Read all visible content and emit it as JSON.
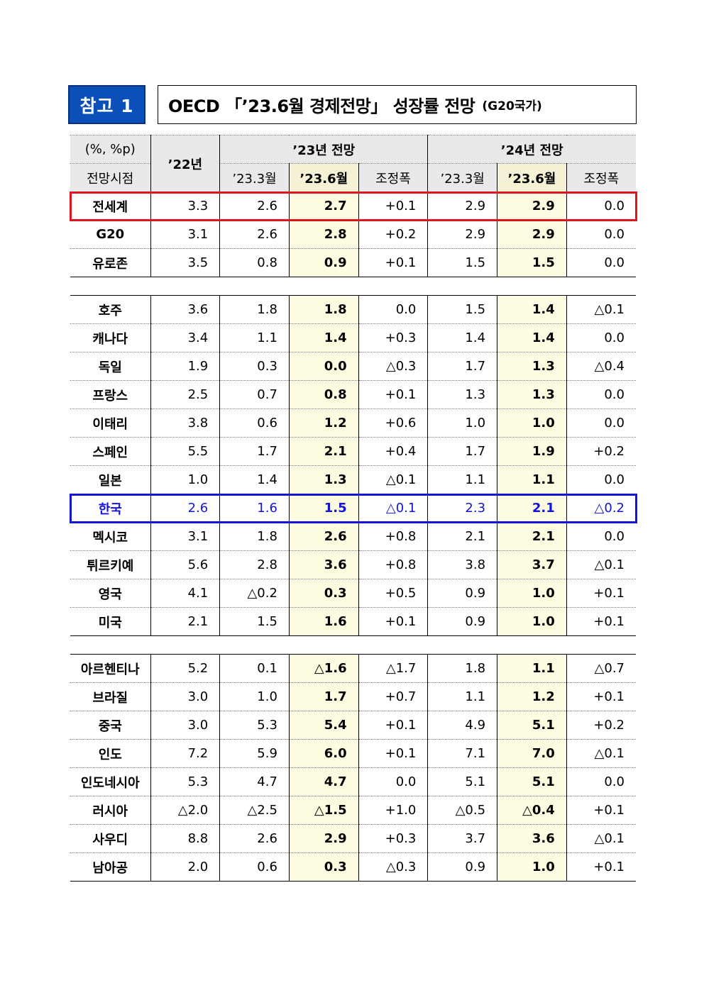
{
  "badge": "참고 1",
  "title": {
    "main": "OECD 「’23.6월 경제전망」 성장률 전망",
    "sub": "(G20국가)"
  },
  "header": {
    "unit": "(%, %p)",
    "basis": "전망시점",
    "y22": "’22년",
    "y23_group": "’23년 전망",
    "y24_group": "’24년 전망",
    "sub_march": "’23.3월",
    "sub_june": "’23.6월",
    "sub_adj": "조정폭"
  },
  "groups": [
    {
      "rows": [
        {
          "name": "전세계",
          "v22": "3.3",
          "m23": "2.6",
          "j23": "2.7",
          "a23": "+0.1",
          "m24": "2.9",
          "j24": "2.9",
          "a24": "0.0"
        },
        {
          "name": "G20",
          "v22": "3.1",
          "m23": "2.6",
          "j23": "2.8",
          "a23": "+0.2",
          "m24": "2.9",
          "j24": "2.9",
          "a24": "0.0"
        },
        {
          "name": "유로존",
          "v22": "3.5",
          "m23": "0.8",
          "j23": "0.9",
          "a23": "+0.1",
          "m24": "1.5",
          "j24": "1.5",
          "a24": "0.0"
        }
      ]
    },
    {
      "rows": [
        {
          "name": "호주",
          "v22": "3.6",
          "m23": "1.8",
          "j23": "1.8",
          "a23": "0.0",
          "m24": "1.5",
          "j24": "1.4",
          "a24": "△0.1"
        },
        {
          "name": "캐나다",
          "v22": "3.4",
          "m23": "1.1",
          "j23": "1.4",
          "a23": "+0.3",
          "m24": "1.4",
          "j24": "1.4",
          "a24": "0.0"
        },
        {
          "name": "독일",
          "v22": "1.9",
          "m23": "0.3",
          "j23": "0.0",
          "a23": "△0.3",
          "m24": "1.7",
          "j24": "1.3",
          "a24": "△0.4"
        },
        {
          "name": "프랑스",
          "v22": "2.5",
          "m23": "0.7",
          "j23": "0.8",
          "a23": "+0.1",
          "m24": "1.3",
          "j24": "1.3",
          "a24": "0.0"
        },
        {
          "name": "이태리",
          "v22": "3.8",
          "m23": "0.6",
          "j23": "1.2",
          "a23": "+0.6",
          "m24": "1.0",
          "j24": "1.0",
          "a24": "0.0"
        },
        {
          "name": "스페인",
          "v22": "5.5",
          "m23": "1.7",
          "j23": "2.1",
          "a23": "+0.4",
          "m24": "1.7",
          "j24": "1.9",
          "a24": "+0.2"
        },
        {
          "name": "일본",
          "v22": "1.0",
          "m23": "1.4",
          "j23": "1.3",
          "a23": "△0.1",
          "m24": "1.1",
          "j24": "1.1",
          "a24": "0.0"
        },
        {
          "name": "한국",
          "v22": "2.6",
          "m23": "1.6",
          "j23": "1.5",
          "a23": "△0.1",
          "m24": "2.3",
          "j24": "2.1",
          "a24": "△0.2"
        },
        {
          "name": "멕시코",
          "v22": "3.1",
          "m23": "1.8",
          "j23": "2.6",
          "a23": "+0.8",
          "m24": "2.1",
          "j24": "2.1",
          "a24": "0.0"
        },
        {
          "name": "튀르키예",
          "v22": "5.6",
          "m23": "2.8",
          "j23": "3.6",
          "a23": "+0.8",
          "m24": "3.8",
          "j24": "3.7",
          "a24": "△0.1"
        },
        {
          "name": "영국",
          "v22": "4.1",
          "m23": "△0.2",
          "j23": "0.3",
          "a23": "+0.5",
          "m24": "0.9",
          "j24": "1.0",
          "a24": "+0.1"
        },
        {
          "name": "미국",
          "v22": "2.1",
          "m23": "1.5",
          "j23": "1.6",
          "a23": "+0.1",
          "m24": "0.9",
          "j24": "1.0",
          "a24": "+0.1"
        }
      ]
    },
    {
      "rows": [
        {
          "name": "아르헨티나",
          "v22": "5.2",
          "m23": "0.1",
          "j23": "△1.6",
          "a23": "△1.7",
          "m24": "1.8",
          "j24": "1.1",
          "a24": "△0.7"
        },
        {
          "name": "브라질",
          "v22": "3.0",
          "m23": "1.0",
          "j23": "1.7",
          "a23": "+0.7",
          "m24": "1.1",
          "j24": "1.2",
          "a24": "+0.1"
        },
        {
          "name": "중국",
          "v22": "3.0",
          "m23": "5.3",
          "j23": "5.4",
          "a23": "+0.1",
          "m24": "4.9",
          "j24": "5.1",
          "a24": "+0.2"
        },
        {
          "name": "인도",
          "v22": "7.2",
          "m23": "5.9",
          "j23": "6.0",
          "a23": "+0.1",
          "m24": "7.1",
          "j24": "7.0",
          "a24": "△0.1"
        },
        {
          "name": "인도네시아",
          "v22": "5.3",
          "m23": "4.7",
          "j23": "4.7",
          "a23": "0.0",
          "m24": "5.1",
          "j24": "5.1",
          "a24": "0.0"
        },
        {
          "name": "러시아",
          "v22": "△2.0",
          "m23": "△2.5",
          "j23": "△1.5",
          "a23": "+1.0",
          "m24": "△0.5",
          "j24": "△0.4",
          "a24": "+0.1"
        },
        {
          "name": "사우디",
          "v22": "8.8",
          "m23": "2.6",
          "j23": "2.9",
          "a23": "+0.3",
          "m24": "3.7",
          "j24": "3.6",
          "a24": "△0.1"
        },
        {
          "name": "남아공",
          "v22": "2.0",
          "m23": "0.6",
          "j23": "0.3",
          "a23": "△0.3",
          "m24": "0.9",
          "j24": "1.0",
          "a24": "+0.1"
        }
      ]
    }
  ],
  "colors": {
    "badge_bg": "#0a50b8",
    "highlight_world": "#e0141e",
    "highlight_korea": "#1414d6",
    "june_column_bg": "#fdfbe0"
  }
}
